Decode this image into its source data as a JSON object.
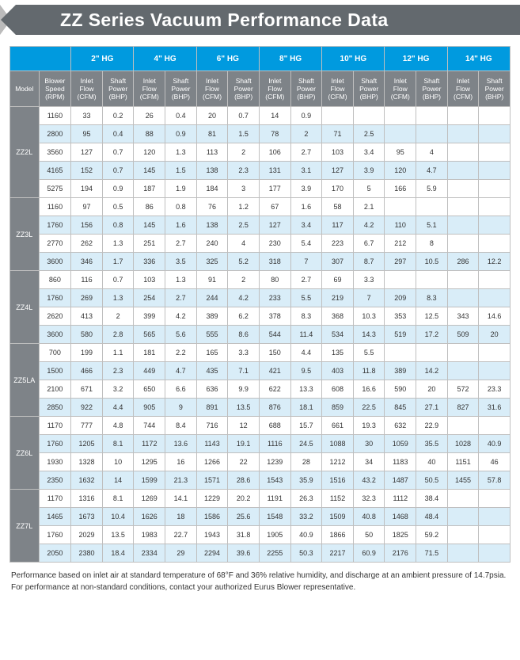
{
  "title": "ZZ Series Vacuum Performance Data",
  "hg_groups": [
    "2\"  HG",
    "4\"  HG",
    "6\"  HG",
    "8\"  HG",
    "10\"  HG",
    "12\"  HG",
    "14\"  HG"
  ],
  "subheaders": {
    "model": "Model",
    "rpm": "Blower\nSpeed\n(RPM)",
    "inlet": "Inlet\nFlow\n(CFM)",
    "shaft": "Shaft\nPower\n(BHP)"
  },
  "models": [
    {
      "name": "ZZ2L",
      "rows": [
        {
          "rpm": "1160",
          "v": [
            "33",
            "0.2",
            "26",
            "0.4",
            "20",
            "0.7",
            "14",
            "0.9",
            "",
            "",
            "",
            "",
            "",
            ""
          ]
        },
        {
          "rpm": "2800",
          "v": [
            "95",
            "0.4",
            "88",
            "0.9",
            "81",
            "1.5",
            "78",
            "2",
            "71",
            "2.5",
            "",
            "",
            "",
            ""
          ]
        },
        {
          "rpm": "3560",
          "v": [
            "127",
            "0.7",
            "120",
            "1.3",
            "113",
            "2",
            "106",
            "2.7",
            "103",
            "3.4",
            "95",
            "4",
            "",
            ""
          ]
        },
        {
          "rpm": "4165",
          "v": [
            "152",
            "0.7",
            "145",
            "1.5",
            "138",
            "2.3",
            "131",
            "3.1",
            "127",
            "3.9",
            "120",
            "4.7",
            "",
            ""
          ]
        },
        {
          "rpm": "5275",
          "v": [
            "194",
            "0.9",
            "187",
            "1.9",
            "184",
            "3",
            "177",
            "3.9",
            "170",
            "5",
            "166",
            "5.9",
            "",
            ""
          ]
        }
      ]
    },
    {
      "name": "ZZ3L",
      "rows": [
        {
          "rpm": "1160",
          "v": [
            "97",
            "0.5",
            "86",
            "0.8",
            "76",
            "1.2",
            "67",
            "1.6",
            "58",
            "2.1",
            "",
            "",
            "",
            ""
          ]
        },
        {
          "rpm": "1760",
          "v": [
            "156",
            "0.8",
            "145",
            "1.6",
            "138",
            "2.5",
            "127",
            "3.4",
            "117",
            "4.2",
            "110",
            "5.1",
            "",
            ""
          ]
        },
        {
          "rpm": "2770",
          "v": [
            "262",
            "1.3",
            "251",
            "2.7",
            "240",
            "4",
            "230",
            "5.4",
            "223",
            "6.7",
            "212",
            "8",
            "",
            ""
          ]
        },
        {
          "rpm": "3600",
          "v": [
            "346",
            "1.7",
            "336",
            "3.5",
            "325",
            "5.2",
            "318",
            "7",
            "307",
            "8.7",
            "297",
            "10.5",
            "286",
            "12.2"
          ]
        }
      ]
    },
    {
      "name": "ZZ4L",
      "rows": [
        {
          "rpm": "860",
          "v": [
            "116",
            "0.7",
            "103",
            "1.3",
            "91",
            "2",
            "80",
            "2.7",
            "69",
            "3.3",
            "",
            "",
            "",
            ""
          ]
        },
        {
          "rpm": "1760",
          "v": [
            "269",
            "1.3",
            "254",
            "2.7",
            "244",
            "4.2",
            "233",
            "5.5",
            "219",
            "7",
            "209",
            "8.3",
            "",
            ""
          ]
        },
        {
          "rpm": "2620",
          "v": [
            "413",
            "2",
            "399",
            "4.2",
            "389",
            "6.2",
            "378",
            "8.3",
            "368",
            "10.3",
            "353",
            "12.5",
            "343",
            "14.6"
          ]
        },
        {
          "rpm": "3600",
          "v": [
            "580",
            "2.8",
            "565",
            "5.6",
            "555",
            "8.6",
            "544",
            "11.4",
            "534",
            "14.3",
            "519",
            "17.2",
            "509",
            "20"
          ]
        }
      ]
    },
    {
      "name": "ZZ5LA",
      "rows": [
        {
          "rpm": "700",
          "v": [
            "199",
            "1.1",
            "181",
            "2.2",
            "165",
            "3.3",
            "150",
            "4.4",
            "135",
            "5.5",
            "",
            "",
            "",
            ""
          ]
        },
        {
          "rpm": "1500",
          "v": [
            "466",
            "2.3",
            "449",
            "4.7",
            "435",
            "7.1",
            "421",
            "9.5",
            "403",
            "11.8",
            "389",
            "14.2",
            "",
            ""
          ]
        },
        {
          "rpm": "2100",
          "v": [
            "671",
            "3.2",
            "650",
            "6.6",
            "636",
            "9.9",
            "622",
            "13.3",
            "608",
            "16.6",
            "590",
            "20",
            "572",
            "23.3"
          ]
        },
        {
          "rpm": "2850",
          "v": [
            "922",
            "4.4",
            "905",
            "9",
            "891",
            "13.5",
            "876",
            "18.1",
            "859",
            "22.5",
            "845",
            "27.1",
            "827",
            "31.6"
          ]
        }
      ]
    },
    {
      "name": "ZZ6L",
      "rows": [
        {
          "rpm": "1170",
          "v": [
            "777",
            "4.8",
            "744",
            "8.4",
            "716",
            "12",
            "688",
            "15.7",
            "661",
            "19.3",
            "632",
            "22.9",
            "",
            ""
          ]
        },
        {
          "rpm": "1760",
          "v": [
            "1205",
            "8.1",
            "1172",
            "13.6",
            "1143",
            "19.1",
            "1116",
            "24.5",
            "1088",
            "30",
            "1059",
            "35.5",
            "1028",
            "40.9"
          ]
        },
        {
          "rpm": "1930",
          "v": [
            "1328",
            "10",
            "1295",
            "16",
            "1266",
            "22",
            "1239",
            "28",
            "1212",
            "34",
            "1183",
            "40",
            "1151",
            "46"
          ]
        },
        {
          "rpm": "2350",
          "v": [
            "1632",
            "14",
            "1599",
            "21.3",
            "1571",
            "28.6",
            "1543",
            "35.9",
            "1516",
            "43.2",
            "1487",
            "50.5",
            "1455",
            "57.8"
          ]
        }
      ]
    },
    {
      "name": "ZZ7L",
      "rows": [
        {
          "rpm": "1170",
          "v": [
            "1316",
            "8.1",
            "1269",
            "14.1",
            "1229",
            "20.2",
            "1191",
            "26.3",
            "1152",
            "32.3",
            "1112",
            "38.4",
            "",
            ""
          ]
        },
        {
          "rpm": "1465",
          "v": [
            "1673",
            "10.4",
            "1626",
            "18",
            "1586",
            "25.6",
            "1548",
            "33.2",
            "1509",
            "40.8",
            "1468",
            "48.4",
            "",
            ""
          ]
        },
        {
          "rpm": "1760",
          "v": [
            "2029",
            "13.5",
            "1983",
            "22.7",
            "1943",
            "31.8",
            "1905",
            "40.9",
            "1866",
            "50",
            "1825",
            "59.2",
            "",
            ""
          ]
        },
        {
          "rpm": "2050",
          "v": [
            "2380",
            "18.4",
            "2334",
            "29",
            "2294",
            "39.6",
            "2255",
            "50.3",
            "2217",
            "60.9",
            "2176",
            "71.5",
            "",
            ""
          ]
        }
      ]
    }
  ],
  "footnote": "Performance based on inlet air at standard temperature of 68°F and 36% relative humidity, and discharge at an ambient pressure of 14.7psia. For performance at non-standard conditions, contact your authorized Eurus Blower representative."
}
